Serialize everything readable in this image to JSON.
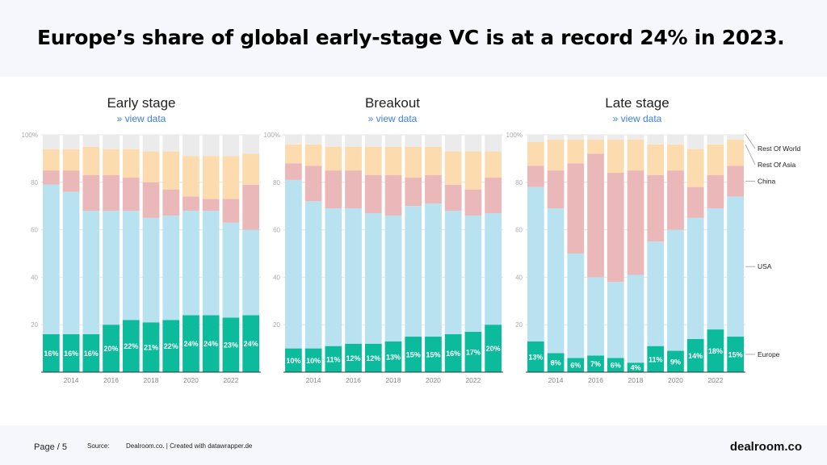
{
  "title": "Europe’s share of global early-stage VC is at a record 24% in 2023.",
  "view_data_label": "» view data",
  "footer": {
    "page": "Page / 5",
    "source_label": "Source:",
    "source_value": "Dealroom.co. | Created with datawrapper.de",
    "logo": "dealroom.co"
  },
  "colors": {
    "Europe": "#0bbb9b",
    "USA": "#b9e2f0",
    "China": "#ebb8b9",
    "Rest Of Asia": "#fcdbae",
    "Rest Of World": "#ebebeb"
  },
  "chart_data": [
    {
      "type": "bar",
      "stacked": true,
      "title": "Early stage",
      "categories": [
        2013,
        2014,
        2015,
        2016,
        2017,
        2018,
        2019,
        2020,
        2021,
        2022,
        2023
      ],
      "x_tick_labels": [
        "2014",
        "2016",
        "2018",
        "2020",
        "2022"
      ],
      "y_tick_labels": [
        "100%",
        "80",
        "60",
        "40",
        "20"
      ],
      "ylim": [
        0,
        100
      ],
      "grid": true,
      "series": [
        {
          "name": "Europe",
          "values": [
            16,
            16,
            16,
            20,
            22,
            21,
            22,
            24,
            24,
            23,
            24
          ]
        },
        {
          "name": "USA",
          "values": [
            63,
            60,
            52,
            48,
            46,
            44,
            44,
            44,
            44,
            40,
            36
          ]
        },
        {
          "name": "China",
          "values": [
            6,
            9,
            15,
            15,
            14,
            15,
            11,
            6,
            5,
            10,
            19
          ]
        },
        {
          "name": "Rest Of Asia",
          "values": [
            9,
            9,
            12,
            11,
            12,
            13,
            16,
            17,
            18,
            18,
            13
          ]
        },
        {
          "name": "Rest Of World",
          "values": [
            6,
            6,
            5,
            6,
            6,
            7,
            7,
            9,
            9,
            9,
            8
          ]
        }
      ],
      "data_labels": [
        "16%",
        "16%",
        "16%",
        "20%",
        "22%",
        "21%",
        "22%",
        "24%",
        "24%",
        "23%",
        "24%"
      ]
    },
    {
      "type": "bar",
      "stacked": true,
      "title": "Breakout",
      "categories": [
        2013,
        2014,
        2015,
        2016,
        2017,
        2018,
        2019,
        2020,
        2021,
        2022,
        2023
      ],
      "x_tick_labels": [
        "2014",
        "2016",
        "2018",
        "2020",
        "2022"
      ],
      "y_tick_labels": [
        "100%",
        "80",
        "60",
        "40",
        "20"
      ],
      "ylim": [
        0,
        100
      ],
      "grid": true,
      "series": [
        {
          "name": "Europe",
          "values": [
            10,
            10,
            11,
            12,
            12,
            13,
            15,
            15,
            16,
            17,
            20
          ]
        },
        {
          "name": "USA",
          "values": [
            71,
            62,
            58,
            57,
            55,
            53,
            55,
            56,
            52,
            49,
            47
          ]
        },
        {
          "name": "China",
          "values": [
            7,
            15,
            16,
            16,
            16,
            17,
            12,
            12,
            11,
            11,
            15
          ]
        },
        {
          "name": "Rest Of Asia",
          "values": [
            8,
            9,
            10,
            10,
            12,
            12,
            13,
            12,
            14,
            16,
            11
          ]
        },
        {
          "name": "Rest Of World",
          "values": [
            4,
            4,
            5,
            5,
            5,
            5,
            5,
            5,
            7,
            7,
            7
          ]
        }
      ],
      "data_labels": [
        "10%",
        "10%",
        "11%",
        "12%",
        "12%",
        "13%",
        "15%",
        "15%",
        "16%",
        "17%",
        "20%"
      ]
    },
    {
      "type": "bar",
      "stacked": true,
      "title": "Late stage",
      "categories": [
        2013,
        2014,
        2015,
        2016,
        2017,
        2018,
        2019,
        2020,
        2021,
        2022,
        2023
      ],
      "x_tick_labels": [
        "2014",
        "2016",
        "2018",
        "2020",
        "2022"
      ],
      "y_tick_labels": [
        "100%",
        "80",
        "60",
        "40",
        "20"
      ],
      "ylim": [
        0,
        100
      ],
      "grid": true,
      "legend": "right (direct labels)",
      "series": [
        {
          "name": "Europe",
          "values": [
            13,
            8,
            6,
            7,
            6,
            4,
            11,
            9,
            14,
            18,
            15
          ]
        },
        {
          "name": "USA",
          "values": [
            65,
            61,
            44,
            33,
            32,
            37,
            44,
            51,
            51,
            51,
            59
          ]
        },
        {
          "name": "China",
          "values": [
            9,
            16,
            38,
            52,
            46,
            44,
            28,
            25,
            13,
            14,
            13
          ]
        },
        {
          "name": "Rest Of Asia",
          "values": [
            10,
            13,
            10,
            6,
            14,
            13,
            13,
            11,
            16,
            13,
            11
          ]
        },
        {
          "name": "Rest Of World",
          "values": [
            3,
            2,
            2,
            2,
            2,
            2,
            4,
            4,
            6,
            4,
            2
          ]
        }
      ],
      "data_labels": [
        "13%",
        "8%",
        "6%",
        "7%",
        "6%",
        "4%",
        "11%",
        "9%",
        "14%",
        "18%",
        "15%"
      ]
    }
  ]
}
